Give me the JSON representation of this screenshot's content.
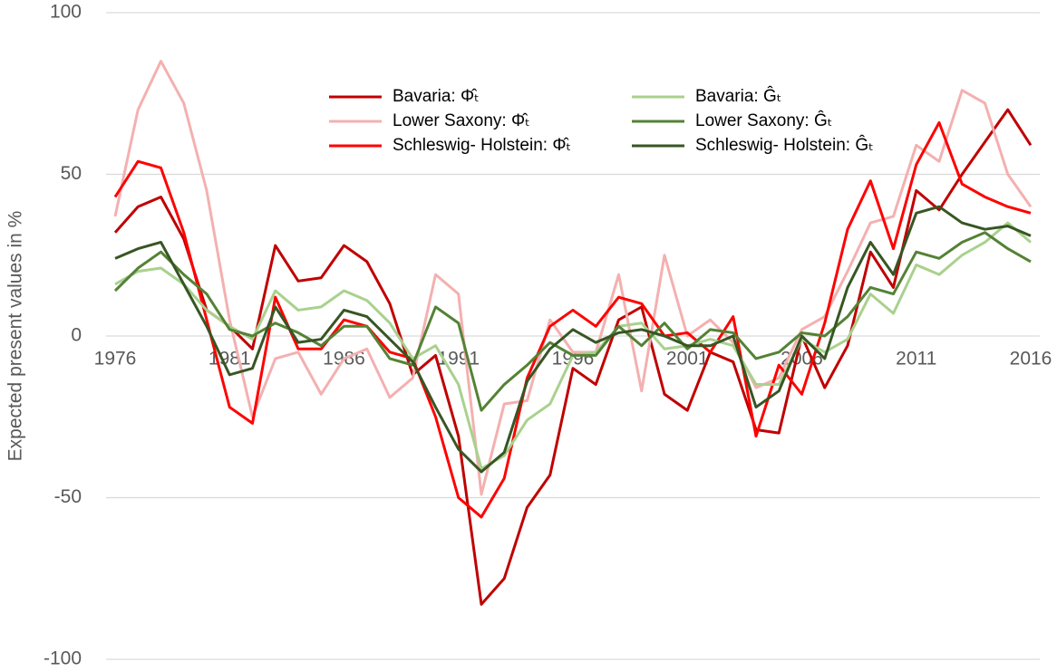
{
  "chart_data": {
    "type": "line",
    "y_label": "Expected present values in %",
    "x": [
      1976,
      1977,
      1978,
      1979,
      1980,
      1981,
      1982,
      1983,
      1984,
      1985,
      1986,
      1987,
      1988,
      1989,
      1990,
      1991,
      1992,
      1993,
      1994,
      1995,
      1996,
      1997,
      1998,
      1999,
      2000,
      2001,
      2002,
      2003,
      2004,
      2005,
      2006,
      2007,
      2008,
      2009,
      2010,
      2011,
      2012,
      2013,
      2014,
      2015,
      2016
    ],
    "xlim": [
      1976,
      2016
    ],
    "xticks": [
      1976,
      1981,
      1986,
      1991,
      1996,
      2001,
      2006,
      2011,
      2016
    ],
    "ylim": [
      -100,
      100
    ],
    "yticks": [
      -100,
      -50,
      0,
      50,
      100
    ],
    "grid": true,
    "series": [
      {
        "name": "Bavaria: Φ̂ₜ",
        "color": "#c00000",
        "values": [
          32,
          40,
          43,
          30,
          8,
          3,
          -4,
          28,
          17,
          18,
          28,
          23,
          10,
          -12,
          -6,
          -31,
          -83,
          -75,
          -53,
          -43,
          -10,
          -15,
          5,
          9,
          -18,
          -23,
          -5,
          -8,
          -29,
          -30,
          0,
          -16,
          -3,
          26,
          15,
          45,
          39,
          50,
          60,
          70,
          59
        ]
      },
      {
        "name": "Lower Saxony: Φ̂ₜ",
        "color": "#f4b0b0",
        "values": [
          37,
          70,
          85,
          72,
          45,
          5,
          -25,
          -7,
          -5,
          -18,
          -7,
          -4,
          -19,
          -13,
          19,
          13,
          -49,
          -21,
          -20,
          5,
          -5,
          -5,
          19,
          -17,
          25,
          0,
          5,
          -2,
          -16,
          -13,
          2,
          6,
          20,
          35,
          37,
          59,
          54,
          76,
          72,
          50,
          40
        ]
      },
      {
        "name": "Schleswig- Holstein: Φ̂ₜ",
        "color": "#ff0000",
        "values": [
          43,
          54,
          52,
          32,
          5,
          -22,
          -27,
          12,
          -4,
          -4,
          5,
          3,
          -5,
          -7,
          -25,
          -50,
          -56,
          -44,
          -13,
          3,
          8,
          3,
          12,
          10,
          0,
          1,
          -5,
          6,
          -31,
          -9,
          -18,
          4,
          33,
          48,
          27,
          53,
          66,
          47,
          43,
          40,
          38
        ]
      },
      {
        "name": "Bavaria: Ĝₜ",
        "color": "#a9d18e",
        "values": [
          16,
          20,
          21,
          16,
          8,
          3,
          -1,
          14,
          8,
          9,
          14,
          11,
          4,
          -7,
          -3,
          -15,
          -41,
          -37,
          -26,
          -21,
          -6,
          -5,
          3,
          4,
          -4,
          -3,
          -1,
          -3,
          -15,
          -15,
          -1,
          -5,
          -1,
          13,
          7,
          22,
          19,
          25,
          29,
          35,
          29
        ]
      },
      {
        "name": "Lower Saxony: Ĝₜ",
        "color": "#548235",
        "values": [
          14,
          21,
          26,
          19,
          13,
          2,
          0,
          4,
          1,
          -3,
          3,
          3,
          -7,
          -9,
          9,
          4,
          -23,
          -15,
          -9,
          -2,
          -6,
          -6,
          3,
          -3,
          4,
          -4,
          2,
          1,
          -7,
          -5,
          1,
          0,
          6,
          15,
          13,
          26,
          24,
          29,
          32,
          27,
          23
        ]
      },
      {
        "name": "Schleswig- Holstein: Ĝₜ",
        "color": "#375623",
        "values": [
          24,
          27,
          29,
          16,
          3,
          -12,
          -10,
          9,
          -2,
          -1,
          8,
          6,
          -1,
          -8,
          -22,
          -35,
          -42,
          -36,
          -14,
          -4,
          2,
          -2,
          1,
          2,
          0,
          -3,
          -3,
          0,
          -22,
          -17,
          0,
          -7,
          15,
          29,
          19,
          38,
          40,
          35,
          33,
          34,
          31
        ]
      }
    ]
  }
}
